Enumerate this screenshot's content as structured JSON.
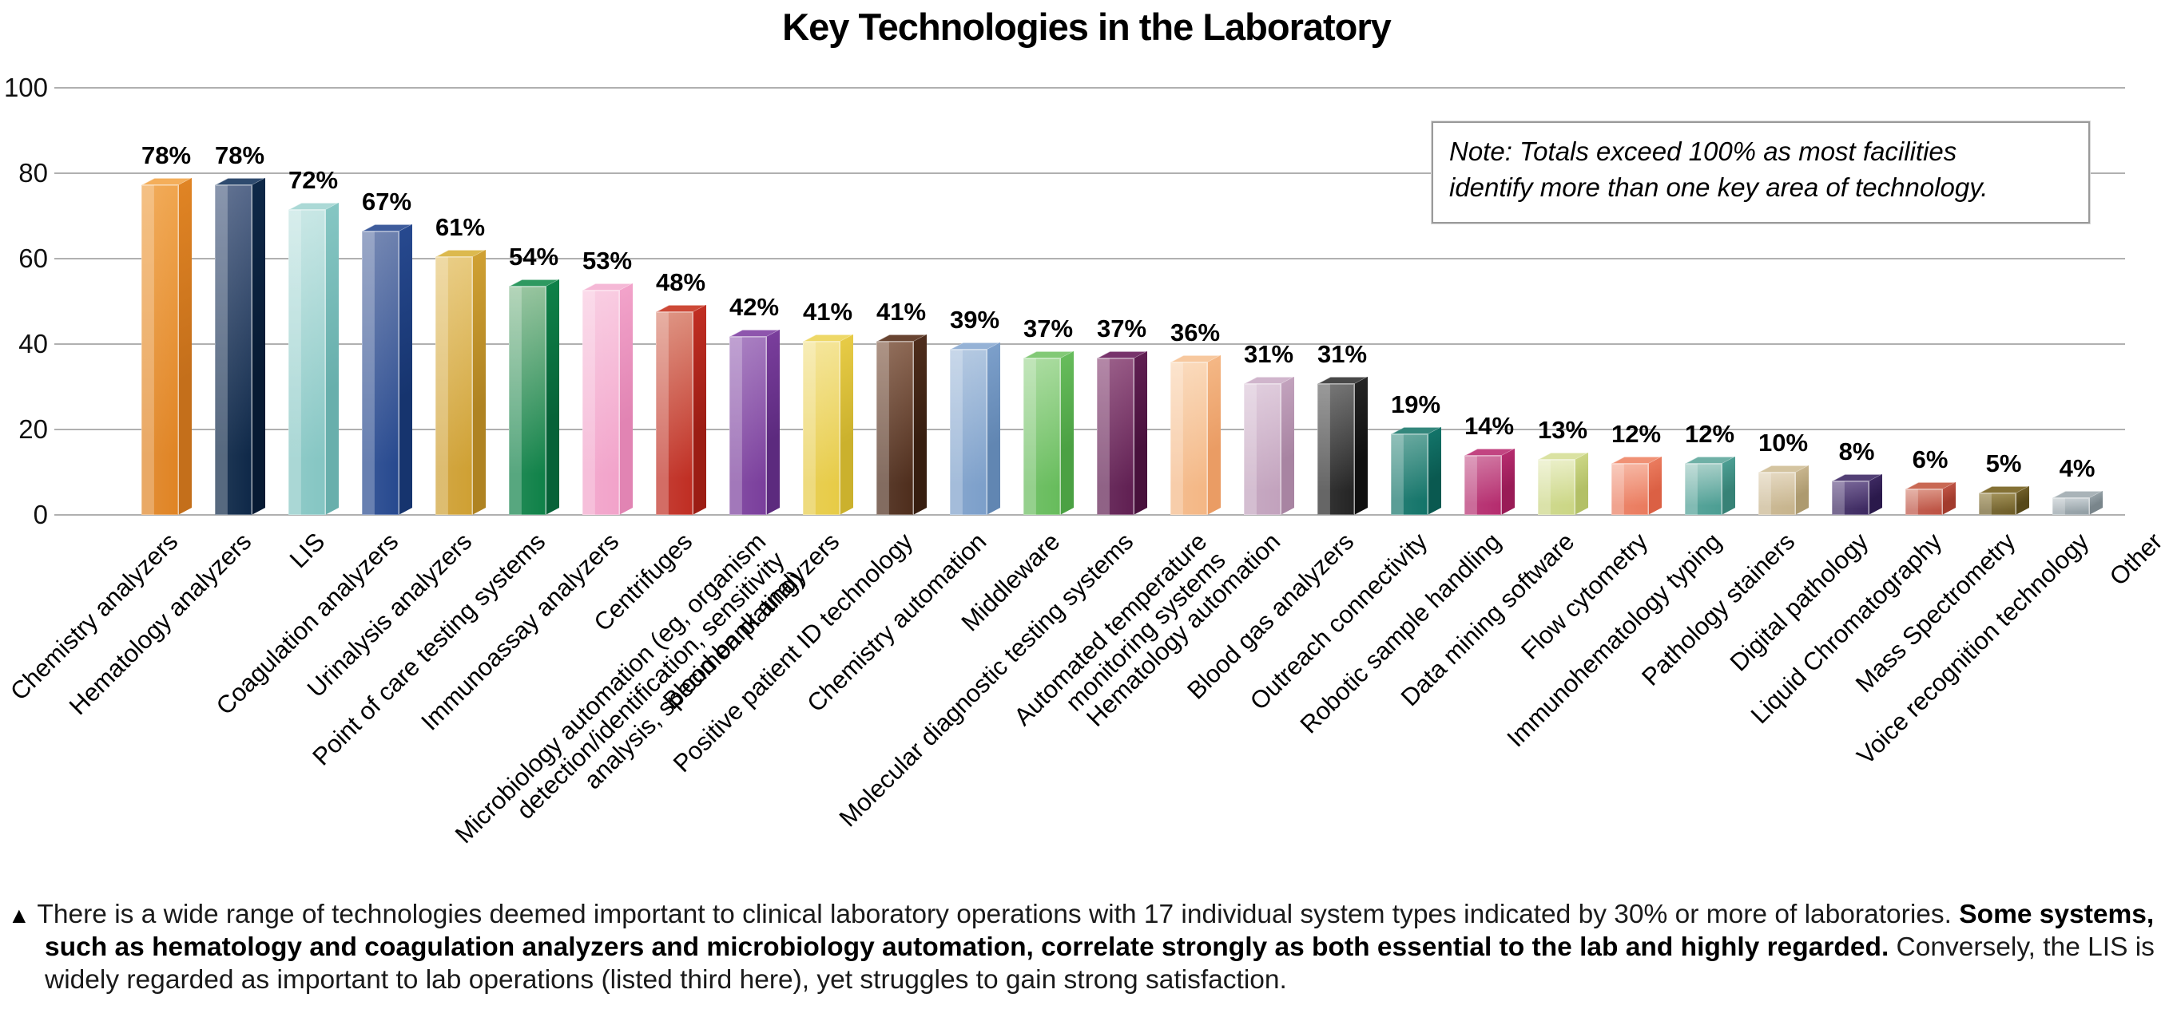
{
  "title": "Key Technologies in the Laboratory",
  "note": {
    "line1": "Note: Totals exceed 100% as most facilities",
    "line2": "identify more than one key area of technology."
  },
  "footnote": {
    "bullet": "▲",
    "seg1": "There is a wide range of technologies deemed important to clinical laboratory operations with 17 individual system types indicated by 30% or more of laboratories. ",
    "seg2_bold": "Some systems, such as hematology and coagulation analyzers and microbiology automation, correlate strongly as both essential to the lab and highly regarded.",
    "seg3": " Conversely, the LIS is widely regarded as important to lab operations (listed third here), yet struggles to gain strong satisfaction."
  },
  "chart_data": {
    "type": "bar",
    "title": "Key Technologies in the Laboratory",
    "xlabel": "",
    "ylabel": "",
    "ylim": [
      0,
      100
    ],
    "y_ticks": [
      0,
      20,
      40,
      60,
      80,
      100
    ],
    "grid": true,
    "legend": "none",
    "value_suffix": "%",
    "annotation": "Note: Totals exceed 100% as most facilities identify more than one key area of technology.",
    "categories": [
      "Chemistry analyzers",
      "Hematology analyzers",
      "LIS",
      "Coagulation analyzers",
      "Urinalysis analyzers",
      "Point of care testing systems",
      "Immunoassay analyzers",
      "Centrifuges",
      "Microbiology automation (eg, organism\ndetection/identification, sensitivity\nanalysis, specimen plating)",
      "Blood bank analyzers",
      "Positive patient ID technology",
      "Chemistry automation",
      "Middleware",
      "Molecular diagnostic testing systems",
      "Automated temperature\nmonitoring systems",
      "Hematology automation",
      "Blood gas analyzers",
      "Outreach connectivity",
      "Robotic sample handling",
      "Data mining software",
      "Flow cytometry",
      "Immunohematology typing",
      "Pathology stainers",
      "Digital pathology",
      "Liquid Chromatography",
      "Mass Spectrometry",
      "Voice recognition technology",
      "Other"
    ],
    "values": [
      78,
      78,
      72,
      67,
      61,
      54,
      53,
      48,
      42,
      41,
      41,
      39,
      37,
      37,
      36,
      31,
      31,
      19,
      14,
      13,
      12,
      12,
      10,
      8,
      6,
      5,
      4,
      0
    ],
    "colors": [
      {
        "light": "#F0A54E",
        "base": "#E08424",
        "side": "#C46F1B",
        "top": "#F4AE5A"
      },
      {
        "light": "#56688A",
        "base": "#0E2848",
        "side": "#071A33",
        "top": "#2E4A6E"
      },
      {
        "light": "#C6E6E4",
        "base": "#85C6C3",
        "side": "#68AFAC",
        "top": "#ABD9D6"
      },
      {
        "light": "#6C80AE",
        "base": "#27498F",
        "side": "#16346E",
        "top": "#3E5C9C"
      },
      {
        "light": "#E8CA7E",
        "base": "#CFA033",
        "side": "#AF8322",
        "top": "#DCB94E"
      },
      {
        "light": "#93C29B",
        "base": "#0F8148",
        "side": "#076238",
        "top": "#2E9960"
      },
      {
        "light": "#F9CBE1",
        "base": "#F2A3CA",
        "side": "#E184B3",
        "top": "#F5B8D6"
      },
      {
        "light": "#DC8D7B",
        "base": "#C02E23",
        "side": "#9C1D14",
        "top": "#CD4937"
      },
      {
        "light": "#A478BE",
        "base": "#7A3E9C",
        "side": "#5C2A7E",
        "top": "#8E55AD"
      },
      {
        "light": "#F4E495",
        "base": "#E7CB46",
        "side": "#CBB12D",
        "top": "#EED867"
      },
      {
        "light": "#8A6551",
        "base": "#4E2D1C",
        "side": "#371E10",
        "top": "#684431"
      },
      {
        "light": "#B0C6E0",
        "base": "#7C9FCA",
        "side": "#6186B2",
        "top": "#95B2D6"
      },
      {
        "light": "#A6DA9B",
        "base": "#67BC5C",
        "side": "#4BA143",
        "top": "#82C976"
      },
      {
        "light": "#935481",
        "base": "#601F52",
        "side": "#48113C",
        "top": "#77336B"
      },
      {
        "light": "#FAD8B8",
        "base": "#F4B785",
        "side": "#EA9C64",
        "top": "#F7C89E"
      },
      {
        "light": "#DECADB",
        "base": "#C2A2BD",
        "side": "#A884A2",
        "top": "#D0B5CC"
      },
      {
        "light": "#6E6E6E",
        "base": "#242424",
        "side": "#0F0F0F",
        "top": "#484848"
      },
      {
        "light": "#60A49A",
        "base": "#137469",
        "side": "#0A5950",
        "top": "#33877C"
      },
      {
        "light": "#CE709D",
        "base": "#B52C6E",
        "side": "#991B56",
        "top": "#C24481"
      },
      {
        "light": "#E9EEC5",
        "base": "#CBD685",
        "side": "#B3C066",
        "top": "#DAE2A2"
      },
      {
        "light": "#F6B39F",
        "base": "#EA7B5E",
        "side": "#DB6044",
        "top": "#F09175"
      },
      {
        "light": "#A6CEC7",
        "base": "#4C9E93",
        "side": "#378276",
        "top": "#6FB0A6"
      },
      {
        "light": "#E3D6BD",
        "base": "#C7B48D",
        "side": "#AD9A6F",
        "top": "#D4C4A0"
      },
      {
        "light": "#6F5C90",
        "base": "#3D2961",
        "side": "#2A194B",
        "top": "#523F75"
      },
      {
        "light": "#DA9181",
        "base": "#BD5243",
        "side": "#A23B2D",
        "top": "#C96853"
      },
      {
        "light": "#9C8B50",
        "base": "#6F5E28",
        "side": "#564819",
        "top": "#847135"
      },
      {
        "light": "#C6CED2",
        "base": "#94A0A6",
        "side": "#79858B",
        "top": "#A9B3B8"
      },
      {
        "light": "#C6CED2",
        "base": "#94A0A6",
        "side": "#79858B",
        "top": "#A9B3B8"
      }
    ]
  }
}
